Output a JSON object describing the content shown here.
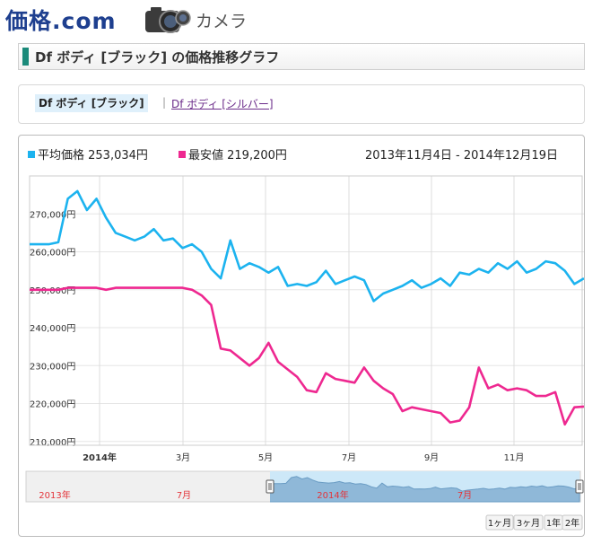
{
  "header": {
    "logo_text": "価格",
    "logo_com": ".com",
    "category": "カメラ",
    "camera_icon": "camera-icon"
  },
  "page_title": "Df ボディ [ブラック] の価格推移グラフ",
  "tabs": {
    "active": "Df ボディ [ブラック]",
    "separator": "|",
    "other": "Df ボディ [シルバー]"
  },
  "chart_data": {
    "type": "line",
    "date_range": "2013年11月4日 - 2014年12月19日",
    "series": [
      {
        "name": "平均価格",
        "label_value": "253,034円",
        "color": "#1cb3ef",
        "values": [
          262000,
          262000,
          262000,
          262500,
          274000,
          276000,
          271000,
          274000,
          269000,
          265000,
          264000,
          263000,
          264000,
          266000,
          263000,
          263500,
          261000,
          262000,
          260000,
          255500,
          253000,
          263000,
          255500,
          257000,
          256000,
          254500,
          256000,
          251000,
          251500,
          251000,
          252000,
          255000,
          251500,
          252500,
          253500,
          252500,
          247000,
          249000,
          250000,
          251000,
          252500,
          250500,
          251500,
          253000,
          251000,
          254500,
          254000,
          255500,
          254500,
          257000,
          255500,
          257500,
          254500,
          255500,
          257500,
          257000,
          255000,
          251500,
          253000
        ]
      },
      {
        "name": "最安値",
        "label_value": "219,200円",
        "color": "#ee2890",
        "values": [
          250000,
          250000,
          250000,
          250000,
          250500,
          250500,
          250500,
          250500,
          250000,
          250500,
          250500,
          250500,
          250500,
          250500,
          250500,
          250500,
          250500,
          250000,
          248500,
          246000,
          234500,
          234000,
          232000,
          230000,
          232000,
          236000,
          231000,
          229000,
          227000,
          223500,
          223000,
          228000,
          226500,
          226000,
          225500,
          229500,
          226000,
          224000,
          222500,
          218000,
          219000,
          218500,
          218000,
          217500,
          215000,
          215500,
          219000,
          229500,
          224000,
          225000,
          223500,
          224000,
          223500,
          222000,
          222000,
          223000,
          214500,
          219000,
          219200
        ]
      }
    ],
    "ylim": [
      209000,
      280000
    ],
    "y_ticks": [
      "210,000円",
      "220,000円",
      "230,000円",
      "240,000円",
      "250,000円",
      "260,000円",
      "270,000円"
    ],
    "y_tick_values": [
      210000,
      220000,
      230000,
      240000,
      250000,
      260000,
      270000
    ],
    "x_ticks": [
      "2014年",
      "3月",
      "5月",
      "7月",
      "9月",
      "11月"
    ],
    "navigator": {
      "labels": [
        "2013年",
        "7月",
        "2014年",
        "7月"
      ]
    },
    "range_buttons": [
      "1ヶ月",
      "3ヶ月",
      "1年",
      "2年"
    ]
  }
}
